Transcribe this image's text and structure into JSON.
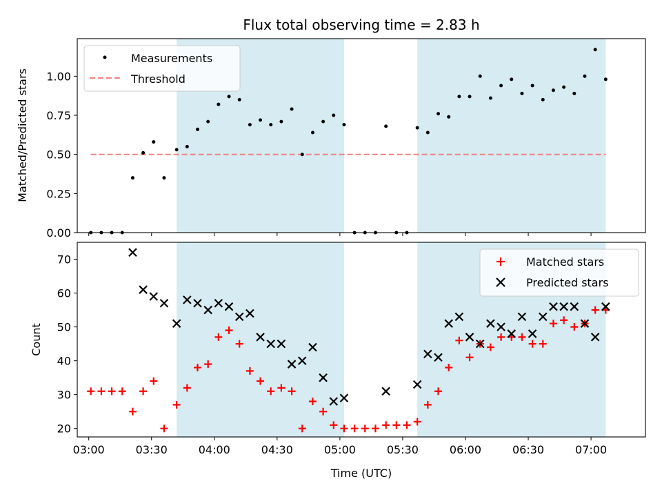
{
  "figure": {
    "title": "Flux total observing time = 2.83 h",
    "xlabel": "Time (UTC)",
    "x_ticks": [
      "03:00",
      "03:30",
      "04:00",
      "04:30",
      "05:00",
      "05:30",
      "06:00",
      "06:30",
      "07:00"
    ],
    "x_tick_minutes": [
      180,
      210,
      240,
      270,
      300,
      330,
      360,
      390,
      420
    ],
    "xlim_minutes": [
      174.5,
      446
    ],
    "shaded_intervals_minutes": [
      [
        222,
        302
      ],
      [
        337,
        427
      ]
    ],
    "colors": {
      "shade": "#add8e6",
      "measurement": "#000000",
      "threshold": "#f08080",
      "matched": "#ff0000",
      "predicted": "#000000"
    }
  },
  "chart_data": [
    {
      "type": "scatter",
      "ylabel": "Matched/Predicted stars",
      "ylim": [
        0,
        1.24
      ],
      "y_ticks": [
        "0.00",
        "0.25",
        "0.50",
        "0.75",
        "1.00"
      ],
      "y_tick_values": [
        0,
        0.25,
        0.5,
        0.75,
        1.0
      ],
      "legend_position": "upper-left",
      "legend": [
        "Measurements",
        "Threshold"
      ],
      "threshold": {
        "value": 0.5,
        "x_range": [
          181,
          427
        ]
      },
      "measurements": [
        [
          181,
          0.0
        ],
        [
          186,
          0.0
        ],
        [
          191,
          0.0
        ],
        [
          196,
          0.0
        ],
        [
          201,
          0.35
        ],
        [
          206,
          0.51
        ],
        [
          211,
          0.58
        ],
        [
          216,
          0.35
        ],
        [
          222,
          0.53
        ],
        [
          227,
          0.55
        ],
        [
          232,
          0.66
        ],
        [
          237,
          0.71
        ],
        [
          242,
          0.82
        ],
        [
          247,
          0.87
        ],
        [
          252,
          0.85
        ],
        [
          257,
          0.69
        ],
        [
          262,
          0.72
        ],
        [
          267,
          0.69
        ],
        [
          272,
          0.71
        ],
        [
          277,
          0.79
        ],
        [
          282,
          0.5
        ],
        [
          287,
          0.64
        ],
        [
          292,
          0.71
        ],
        [
          297,
          0.75
        ],
        [
          302,
          0.69
        ],
        [
          307,
          0.0
        ],
        [
          312,
          0.0
        ],
        [
          317,
          0.0
        ],
        [
          322,
          0.68
        ],
        [
          327,
          0.0
        ],
        [
          332,
          0.0
        ],
        [
          337,
          0.67
        ],
        [
          342,
          0.64
        ],
        [
          347,
          0.76
        ],
        [
          352,
          0.74
        ],
        [
          357,
          0.87
        ],
        [
          362,
          0.87
        ],
        [
          367,
          1.0
        ],
        [
          372,
          0.86
        ],
        [
          377,
          0.94
        ],
        [
          382,
          0.98
        ],
        [
          387,
          0.89
        ],
        [
          392,
          0.94
        ],
        [
          397,
          0.85
        ],
        [
          402,
          0.91
        ],
        [
          407,
          0.93
        ],
        [
          412,
          0.89
        ],
        [
          417,
          1.0
        ],
        [
          422,
          1.17
        ],
        [
          427,
          0.98
        ]
      ]
    },
    {
      "type": "scatter",
      "ylabel": "Count",
      "ylim": [
        17.5,
        75
      ],
      "y_ticks": [
        "20",
        "30",
        "40",
        "50",
        "60",
        "70"
      ],
      "y_tick_values": [
        20,
        30,
        40,
        50,
        60,
        70
      ],
      "legend_position": "upper-right",
      "series": [
        {
          "name": "Matched stars",
          "marker": "plus",
          "points": [
            [
              181,
              31
            ],
            [
              186,
              31
            ],
            [
              191,
              31
            ],
            [
              196,
              31
            ],
            [
              201,
              25
            ],
            [
              206,
              31
            ],
            [
              211,
              34
            ],
            [
              216,
              20
            ],
            [
              222,
              27
            ],
            [
              227,
              32
            ],
            [
              232,
              38
            ],
            [
              237,
              39
            ],
            [
              242,
              47
            ],
            [
              247,
              49
            ],
            [
              252,
              45
            ],
            [
              257,
              37
            ],
            [
              262,
              34
            ],
            [
              267,
              31
            ],
            [
              272,
              32
            ],
            [
              277,
              31
            ],
            [
              282,
              20
            ],
            [
              287,
              28
            ],
            [
              292,
              25
            ],
            [
              297,
              21
            ],
            [
              302,
              20
            ],
            [
              307,
              20
            ],
            [
              312,
              20
            ],
            [
              317,
              20
            ],
            [
              322,
              21
            ],
            [
              327,
              21
            ],
            [
              332,
              21
            ],
            [
              337,
              22
            ],
            [
              342,
              27
            ],
            [
              347,
              31
            ],
            [
              352,
              38
            ],
            [
              357,
              46
            ],
            [
              362,
              41
            ],
            [
              367,
              45
            ],
            [
              372,
              44
            ],
            [
              377,
              47
            ],
            [
              382,
              47
            ],
            [
              387,
              47
            ],
            [
              392,
              45
            ],
            [
              397,
              45
            ],
            [
              402,
              51
            ],
            [
              407,
              52
            ],
            [
              412,
              50
            ],
            [
              417,
              51
            ],
            [
              422,
              55
            ],
            [
              427,
              55
            ]
          ]
        },
        {
          "name": "Predicted stars",
          "marker": "x",
          "points": [
            [
              201,
              72
            ],
            [
              206,
              61
            ],
            [
              211,
              59
            ],
            [
              216,
              57
            ],
            [
              222,
              51
            ],
            [
              227,
              58
            ],
            [
              232,
              57
            ],
            [
              237,
              55
            ],
            [
              242,
              57
            ],
            [
              247,
              56
            ],
            [
              252,
              53
            ],
            [
              257,
              54
            ],
            [
              262,
              47
            ],
            [
              267,
              45
            ],
            [
              272,
              45
            ],
            [
              277,
              39
            ],
            [
              282,
              40
            ],
            [
              287,
              44
            ],
            [
              292,
              35
            ],
            [
              297,
              28
            ],
            [
              302,
              29
            ],
            [
              322,
              31
            ],
            [
              337,
              33
            ],
            [
              342,
              42
            ],
            [
              347,
              41
            ],
            [
              352,
              51
            ],
            [
              357,
              53
            ],
            [
              362,
              47
            ],
            [
              367,
              45
            ],
            [
              372,
              51
            ],
            [
              377,
              50
            ],
            [
              382,
              48
            ],
            [
              387,
              53
            ],
            [
              392,
              48
            ],
            [
              397,
              53
            ],
            [
              402,
              56
            ],
            [
              407,
              56
            ],
            [
              412,
              56
            ],
            [
              417,
              51
            ],
            [
              422,
              47
            ],
            [
              427,
              56
            ]
          ]
        }
      ]
    }
  ]
}
